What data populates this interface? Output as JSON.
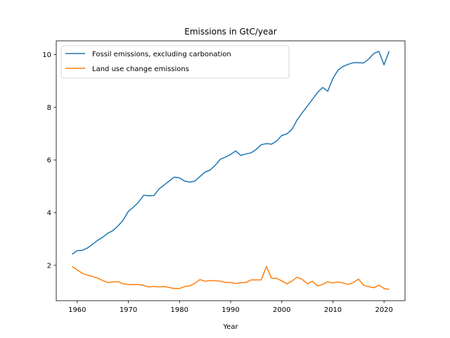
{
  "chart_data": {
    "type": "line",
    "title": "Emissions in GtC/year",
    "xlabel": "Year",
    "ylabel": "",
    "xlim": [
      1955.9,
      2024.1
    ],
    "ylim": [
      0.66,
      10.52
    ],
    "xticks": [
      1960,
      1970,
      1980,
      1990,
      2000,
      2010,
      2020
    ],
    "yticks": [
      2,
      4,
      6,
      8,
      10
    ],
    "grid": false,
    "legend_position": "top-left",
    "x": [
      1959,
      1960,
      1961,
      1962,
      1963,
      1964,
      1965,
      1966,
      1967,
      1968,
      1969,
      1970,
      1971,
      1972,
      1973,
      1974,
      1975,
      1976,
      1977,
      1978,
      1979,
      1980,
      1981,
      1982,
      1983,
      1984,
      1985,
      1986,
      1987,
      1988,
      1989,
      1990,
      1991,
      1992,
      1993,
      1994,
      1995,
      1996,
      1997,
      1998,
      1999,
      2000,
      2001,
      2002,
      2003,
      2004,
      2005,
      2006,
      2007,
      2008,
      2009,
      2010,
      2011,
      2012,
      2013,
      2014,
      2015,
      2016,
      2017,
      2018,
      2019,
      2020,
      2021
    ],
    "series": [
      {
        "name": "Fossil emissions, excluding carbonation",
        "color": "#1f77b4",
        "values": [
          2.42,
          2.56,
          2.57,
          2.66,
          2.8,
          2.95,
          3.07,
          3.22,
          3.32,
          3.5,
          3.72,
          4.05,
          4.21,
          4.4,
          4.66,
          4.64,
          4.65,
          4.9,
          5.05,
          5.2,
          5.35,
          5.32,
          5.2,
          5.16,
          5.2,
          5.37,
          5.54,
          5.62,
          5.8,
          6.03,
          6.11,
          6.21,
          6.34,
          6.17,
          6.23,
          6.27,
          6.4,
          6.58,
          6.62,
          6.6,
          6.72,
          6.93,
          6.99,
          7.16,
          7.52,
          7.79,
          8.04,
          8.3,
          8.56,
          8.75,
          8.61,
          9.09,
          9.41,
          9.55,
          9.63,
          9.69,
          9.69,
          9.68,
          9.83,
          10.04,
          10.12,
          9.61,
          10.13
        ]
      },
      {
        "name": "Land use change emissions",
        "color": "#ff7f0e",
        "values": [
          1.96,
          1.83,
          1.7,
          1.63,
          1.58,
          1.52,
          1.42,
          1.35,
          1.37,
          1.38,
          1.3,
          1.27,
          1.27,
          1.27,
          1.24,
          1.18,
          1.2,
          1.18,
          1.2,
          1.16,
          1.12,
          1.12,
          1.2,
          1.22,
          1.32,
          1.46,
          1.4,
          1.42,
          1.42,
          1.4,
          1.35,
          1.35,
          1.31,
          1.34,
          1.35,
          1.45,
          1.45,
          1.45,
          1.96,
          1.51,
          1.51,
          1.41,
          1.3,
          1.41,
          1.55,
          1.47,
          1.3,
          1.4,
          1.22,
          1.28,
          1.38,
          1.33,
          1.37,
          1.33,
          1.28,
          1.35,
          1.48,
          1.25,
          1.19,
          1.15,
          1.25,
          1.12,
          1.09
        ]
      }
    ]
  }
}
